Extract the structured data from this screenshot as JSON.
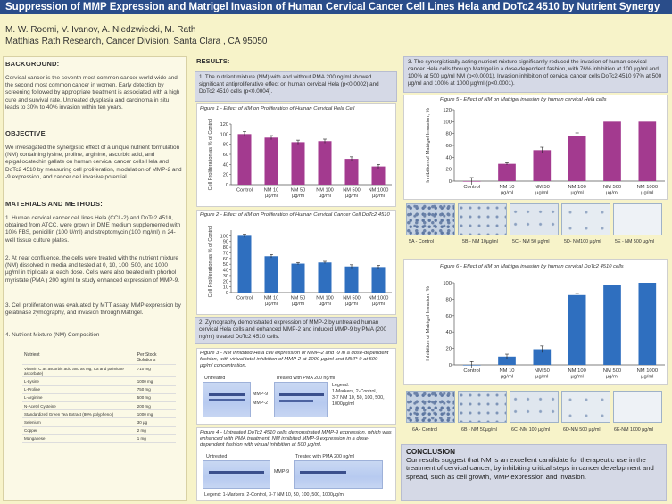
{
  "title": "Suppression of MMP Expression and Matrigel Invasion of Human Cervical Cancer Cell Lines Hela and DoTc2 4510  by Nutrient Synergy",
  "authors": "M. W. Roomi, V. Ivanov, A. Niedzwiecki, M. Rath",
  "affiliation": "Matthias Rath Research, Cancer Division, Santa Clara , CA 95050",
  "background": {
    "heading": "BACKGROUND:",
    "text": "Cervical cancer is the seventh most common cancer world-wide and the second most common cancer in women. Early detection by screening followed by appropriate treatment is associated with a high cure and survival rate. Untreated dysplasia and carcinoma in situ leads to 30% to 40% invasion within ten years."
  },
  "objective": {
    "heading": "OBJECTIVE",
    "text": "We investigated the synergistic effect of a unique nutrient formulation (NM) containing lysine, proline, arginine, ascorbic acid, and epigallocatechin gallate on human cervical cancer cells Hela and DoTc2 4510 by measuring cell proliferation, modulation of MMP-2 and -9 expression, and cancer cell invasive potential."
  },
  "methods": {
    "heading": "MATERIALS AND METHODS:",
    "items": [
      "1. Human cervical cancer cell lines Hela (CCL-2) and  DoTc2 4510, obtained from ATCC, were grown in DME medium supplemented with 10% FBS, penicillin (100 U/ml) and streptomycin (100 mg/ml) in 24-well tissue culture plates.",
      "2. At near confluence, the cells were treated with the nutrient mixture (NM) dissolved in media and tested at 0, 10, 100, 500, and 1000 µg/ml in triplicate at each dose. Cells were also treated with phorbol myristate (PMA ) 200 ng/ml to study enhanced expression of MMP-9.",
      "3. Cell proliferation was evaluated by MTT assay, MMP expression by gelatinase zymography, and invasion through Matrigel.",
      "4. Nutrient Mixture (NM) Composition"
    ]
  },
  "nutrient_table": {
    "headers": [
      "Nutrient",
      "Per Stock Solutions"
    ],
    "rows": [
      [
        "Vitamin C as ascorbic acid and as Mg, Ca and palmitate ascorbate)",
        "710 mg"
      ],
      [
        "L-Lysine",
        "1000 mg"
      ],
      [
        "L-Proline",
        "750 mg"
      ],
      [
        "L-Arginine",
        "500 mg"
      ],
      [
        "N-Acetyl Cysteine",
        "200 mg"
      ],
      [
        "Standardized Green Tea Extract (80% polyphenol)",
        "1000 mg"
      ],
      [
        "Selenium",
        "30 µg"
      ],
      [
        "Copper",
        "2 mg"
      ],
      [
        "Manganese",
        "1 mg"
      ]
    ]
  },
  "results": {
    "heading": "RESULTS:",
    "note1": "1. The nutrient mixture (NM) with and without PMA 200 ng/ml showed significant antiproliferative effect on human cervical Hela (p<0.0002) and DoTc2 4510 cells (p<0.0004).",
    "note2": "2. Zymography demonstrated expression of MMP-2 by untreated human cervical Hela cells and enhanced MMP-2 and induced MMP-9 by PMA (200 ng/ml) treated DoTc2 4510 cells.",
    "note3": "3. The synergistically acting nutrient mixture significantly reduced the invasion of human cervical cancer Hela cells through Matrigel in a dose-dependent fashion, with 76% inhibition at 100 µg/ml and 100% at 500 µg/ml NM (p<0.0001). Invasion inhibition of cervical cancer cells DoTc2 4510 97% at 500 µg/ml and 100% at 1000 µg/ml (p<0.0001)."
  },
  "figures": {
    "fig3": {
      "title": "Figure 3 - NM inhibited Hela cell expression of MMP-2 and -9 in a dose-dependent fashion, with virtual total inhibition of MMP-2 at 1000 µg/ml and MMP-9 at 500 µg/ml concentration.",
      "untreated": "Untreated",
      "treated": "Treated with PMA 200 ng/ml",
      "mmp9": "MMP-9",
      "mmp2": "MMP-2",
      "legend": "Legend:\n1-Markers, 2-Control,\n3-7 NM 10, 50, 100, 500,\n1000µg/ml"
    },
    "fig4": {
      "title": "Figure 4 - Untreated DoTc2 4510 cells demonstrated MMP-9 expression, which was enhanced with PMA treatment. NM inhibited MMP-9 expression in a dose-dependent fashion with virtual inhibition at 500 µg/ml.",
      "untreated": "Untreated",
      "treated": "Treated with PMA 200 ng/ml",
      "mmp9": "MMP-9",
      "legend": "Legend: 1-Markers, 2-Control, 3-7 NM 10, 50, 100, 500, 1000µg/ml"
    },
    "micro5": [
      "5A - Control",
      "5B - NM 10µg/ml",
      "5C - NM 50 µg/ml",
      "5D- NM100 µg/ml",
      "5E - NM  500 µg/ml"
    ],
    "micro6": [
      "6A - Control",
      "6B - NM 50µg/ml",
      "6C -NM 100 µg/ml",
      "6D-NM 500 µg/ml",
      "6E-NM 1000 µg/ml"
    ]
  },
  "chart_data": [
    {
      "type": "bar",
      "title": "Figure 1 - Effect of NM on Proliferation of Human Cervical Hela Cell",
      "ylabel": "Cell Proliferation as % of Control",
      "categories": [
        "Control",
        "NM 10 µg/ml",
        "NM 50 µg/ml",
        "NM 100 µg/ml",
        "NM 500 µg/ml",
        "NM 1000 µg/ml"
      ],
      "values": [
        100,
        93,
        84,
        86,
        51,
        36
      ],
      "errors": [
        5,
        4,
        4,
        4,
        4,
        4
      ],
      "ylim": [
        0,
        120
      ],
      "yticks": [
        0,
        20,
        40,
        60,
        80,
        100,
        120
      ],
      "color": "#a33a8f"
    },
    {
      "type": "bar",
      "title": "Figure 2 - Effect of NM on Proliferation of Human Cervical Cancer Cell DoTc2 4510",
      "ylabel": "Cell Proliferation as % of Control",
      "categories": [
        "Control",
        "NM 10 µg/ml",
        "NM 50 µg/ml",
        "NM 100 µg/ml",
        "NM 500 µg/ml",
        "NM 1000 µg/ml"
      ],
      "values": [
        100,
        64,
        51,
        53,
        46,
        45
      ],
      "errors": [
        3,
        3,
        2,
        2,
        3,
        3
      ],
      "ylim": [
        0,
        110
      ],
      "yticks": [
        0,
        10,
        20,
        30,
        40,
        50,
        60,
        70,
        80,
        90,
        100
      ],
      "color": "#2f6fbf"
    },
    {
      "type": "bar",
      "title": "Figure 5 - Effect of NM on Matrigel invasion by human cervical Hela cells",
      "ylabel": "Inhibition of Matrigel Invasion, %",
      "categories": [
        "Control",
        "NM 10 µg/ml",
        "NM 50 µg/ml",
        "NM 100 µg/ml",
        "NM 500 µg/ml",
        "NM 1000 µg/ml"
      ],
      "values": [
        0,
        29,
        52,
        76,
        100,
        100
      ],
      "errors": [
        6,
        2,
        5,
        5,
        0,
        0
      ],
      "ylim": [
        0,
        120
      ],
      "yticks": [
        0,
        20,
        40,
        60,
        80,
        100,
        120
      ],
      "color": "#a33a8f"
    },
    {
      "type": "bar",
      "title": "Figure 6 - Effect of NM on Matrigel invasion by human cervical DoTc2 4510 cells",
      "ylabel": "Inhibition of Matrigel Invasion, %",
      "categories": [
        "Control",
        "NM 10 µg/ml",
        "NM 50 µg/ml",
        "NM 100 µg/ml",
        "NM 500 µg/ml",
        "NM 1000 µg/ml"
      ],
      "values": [
        0,
        10,
        19,
        85,
        97,
        100
      ],
      "errors": [
        4,
        3,
        4,
        2,
        0,
        0
      ],
      "ylim": [
        0,
        100
      ],
      "yticks": [
        0,
        20,
        40,
        60,
        80,
        100
      ],
      "color": "#2f6fbf"
    }
  ],
  "conclusion": {
    "heading": "CONCLUSION",
    "text": "Our results suggest that NM is an excellent candidate for therapeutic use in the treatment of cervical cancer, by inhibiting critical steps in cancer development and spread, such as cell growth, MMP expression and invasion."
  }
}
